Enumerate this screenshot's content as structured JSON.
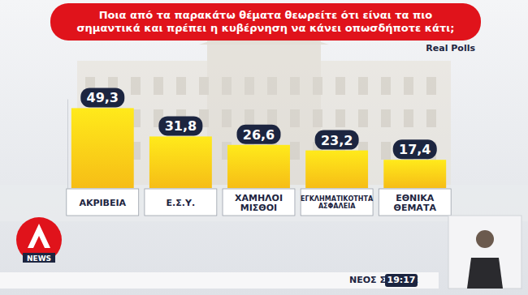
{
  "chart_data": {
    "type": "bar",
    "title": "Ποια από τα παρακάτω θέματα θεωρείτε ότι είναι τα πιο σημαντικά και πρέπει η κυβέρνηση να κάνει οπωσδήποτε κάτι;",
    "source": "Real Polls",
    "categories": [
      "ΑΚΡΙΒΕΙΑ",
      "Ε.Σ.Υ.",
      "ΧΑΜΗΛΟΙ ΜΙΣΘΟΙ",
      "ΕΓΚΛΗΜΑΤΙΚΟΤΗΤΑ ΑΣΦΑΛΕΙΑ",
      "ΕΘΝΙΚΑ ΘΕΜΑΤΑ"
    ],
    "values": [
      49.3,
      31.8,
      26.6,
      23.2,
      17.4
    ],
    "value_labels": [
      "49,3",
      "31,8",
      "26,6",
      "23,2",
      "17,4"
    ],
    "color": "#f6bd16",
    "ylim": [
      0,
      55
    ],
    "yticks": [],
    "grid": false,
    "data_labels": true,
    "tick_labels": "x",
    "annotations": [
      "NEWS",
      "ΝΕΟΣ ΣΥΝΑΓΕ",
      "19:17"
    ]
  }
}
